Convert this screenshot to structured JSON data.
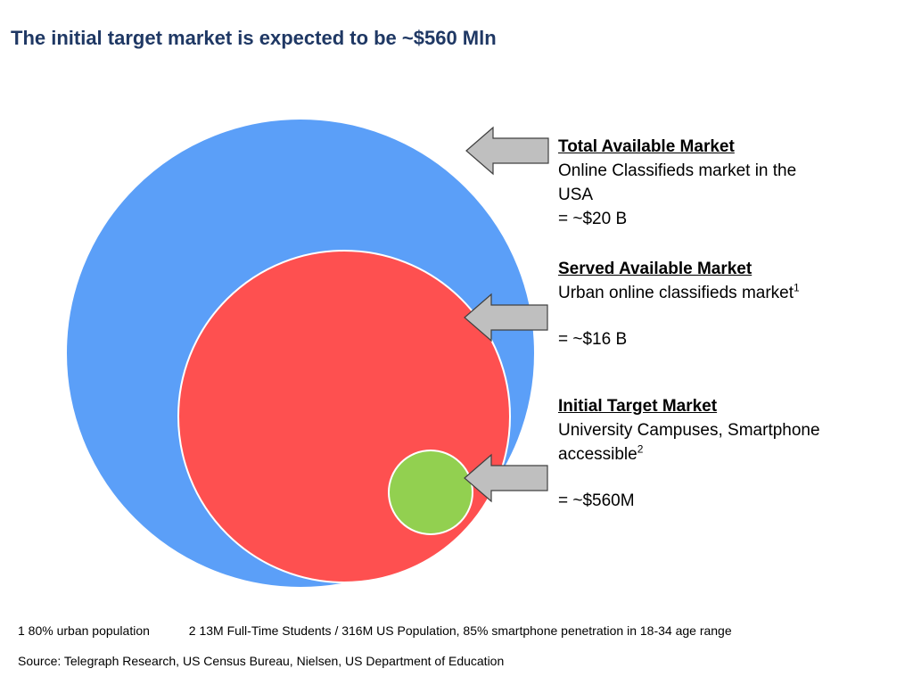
{
  "title": "The initial target market is expected to be ~$560 Mln",
  "colors": {
    "title": "#1f3864",
    "tam_circle": "#5b9ff8",
    "sam_circle": "#fe5050",
    "target_circle": "#92d050",
    "arrow_fill": "#bfbfbf"
  },
  "markets": {
    "tam": {
      "heading": "Total Available Market",
      "desc_1": "Online Classifieds market in the",
      "desc_2": "USA",
      "value": "= ~$20 B"
    },
    "sam": {
      "heading": "Served Available Market",
      "desc": "Urban online classifieds market",
      "footnote_ref": "1",
      "value": "= ~$16 B"
    },
    "target": {
      "heading": "Initial Target Market",
      "desc_1": "University Campuses, Smartphone",
      "desc_2": "accessible",
      "footnote_ref": "2",
      "value": "= ~$560M"
    }
  },
  "footnotes": {
    "note_1": "1 80% urban population",
    "note_2": "2  13M Full-Time Students / 316M US Population, 85% smartphone penetration in 18-34 age range"
  },
  "source": "Source: Telegraph Research, US Census Bureau, Nielsen, US Department of Education"
}
